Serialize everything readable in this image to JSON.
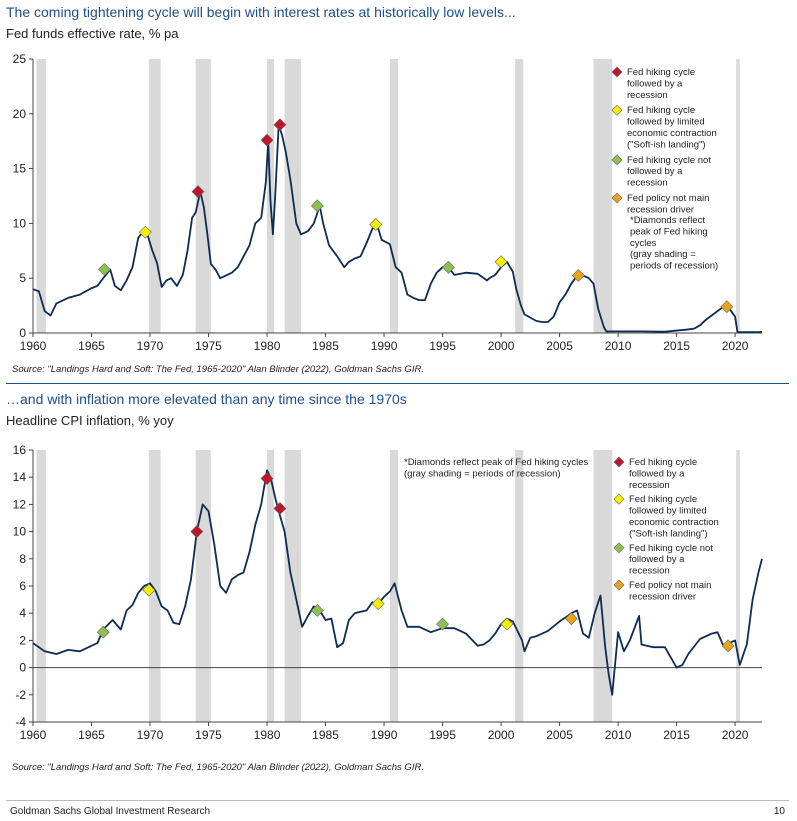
{
  "chart_data": [
    {
      "type": "line",
      "title": "The coming tightening cycle will begin with interest rates at historically low levels...",
      "subtitle": "Fed funds effective rate, % pa",
      "source": "Source: \"Landings Hard and Soft: The Fed, 1965-2020\" Alan Blinder (2022), Goldman Sachs GIR.",
      "xlim": [
        1960,
        2022.3
      ],
      "ylim": [
        0,
        25
      ],
      "xticks": [
        "1960",
        "1965",
        "1970",
        "1975",
        "1980",
        "1985",
        "1990",
        "1995",
        "2000",
        "2005",
        "2010",
        "2015",
        "2020"
      ],
      "yticks": [
        "0",
        "5",
        "10",
        "15",
        "20",
        "25"
      ],
      "recessions": [
        [
          1960.3,
          1961.1
        ],
        [
          1969.9,
          1970.9
        ],
        [
          1973.9,
          1975.2
        ],
        [
          1980.0,
          1980.6
        ],
        [
          1981.5,
          1982.9
        ],
        [
          1990.5,
          1991.2
        ],
        [
          2001.2,
          2001.9
        ],
        [
          2007.9,
          2009.5
        ],
        [
          2020.1,
          2020.4
        ]
      ],
      "series": [
        {
          "name": "Fed funds effective rate",
          "x": [
            1960,
            1960.5,
            1961,
            1961.5,
            1962,
            1963,
            1964,
            1965,
            1965.5,
            1966,
            1966.6,
            1967,
            1967.5,
            1968,
            1968.5,
            1969,
            1969.4,
            1969.8,
            1970.2,
            1970.6,
            1971,
            1971.4,
            1971.8,
            1972.3,
            1972.8,
            1973.2,
            1973.6,
            1973.9,
            1974.3,
            1974.6,
            1974.9,
            1975.2,
            1975.6,
            1976,
            1976.6,
            1977,
            1977.5,
            1978,
            1978.5,
            1979,
            1979.5,
            1979.9,
            1980.1,
            1980.3,
            1980.5,
            1980.7,
            1981,
            1981.3,
            1981.6,
            1982,
            1982.5,
            1982.9,
            1983.5,
            1984,
            1984.5,
            1984.8,
            1985.3,
            1986,
            1986.6,
            1987,
            1987.5,
            1988,
            1988.5,
            1989,
            1989.4,
            1989.8,
            1990.5,
            1991,
            1991.5,
            1992,
            1992.5,
            1993,
            1993.5,
            1994,
            1994.5,
            1995,
            1995.3,
            1995.8,
            1996,
            1997,
            1998,
            1998.8,
            1999,
            1999.5,
            2000,
            2000.5,
            2001,
            2001.3,
            2001.7,
            2002,
            2003,
            2003.5,
            2004,
            2004.5,
            2005,
            2005.5,
            2006,
            2006.5,
            2007,
            2007.5,
            2007.9,
            2008.3,
            2008.8,
            2009,
            2010,
            2012,
            2014,
            2015.8,
            2016.5,
            2017,
            2017.5,
            2018,
            2018.5,
            2019,
            2019.4,
            2019.8,
            2020,
            2020.2,
            2020.5,
            2021,
            2022,
            2022.3
          ],
          "values": [
            4.0,
            3.8,
            2.0,
            1.6,
            2.7,
            3.2,
            3.5,
            4.1,
            4.3,
            5.0,
            5.8,
            4.3,
            3.9,
            4.8,
            6.0,
            8.7,
            9.2,
            8.9,
            7.5,
            6.4,
            4.2,
            4.8,
            5.0,
            4.3,
            5.3,
            7.5,
            10.5,
            11.0,
            12.9,
            11.5,
            9.0,
            6.3,
            5.8,
            5.0,
            5.3,
            5.5,
            6.0,
            7.0,
            8.0,
            10.0,
            10.5,
            13.8,
            17.5,
            12.0,
            9.0,
            12.5,
            19.0,
            18.0,
            16.5,
            14.0,
            10.0,
            9.0,
            9.3,
            10.0,
            11.6,
            10.0,
            8.0,
            7.0,
            6.0,
            6.5,
            6.8,
            7.0,
            8.2,
            9.5,
            9.9,
            8.5,
            8.1,
            6.0,
            5.5,
            3.5,
            3.2,
            3.0,
            3.0,
            4.5,
            5.5,
            6.0,
            6.0,
            5.6,
            5.3,
            5.5,
            5.4,
            4.8,
            5.0,
            5.3,
            6.0,
            6.5,
            5.6,
            4.0,
            2.5,
            1.7,
            1.1,
            1.0,
            1.0,
            1.5,
            2.8,
            3.5,
            4.5,
            5.25,
            5.25,
            5.0,
            4.5,
            2.2,
            0.5,
            0.15,
            0.15,
            0.15,
            0.12,
            0.3,
            0.4,
            0.7,
            1.2,
            1.6,
            2.0,
            2.4,
            2.4,
            1.8,
            1.5,
            0.1,
            0.08,
            0.08,
            0.08,
            0.1
          ]
        }
      ],
      "markers": [
        {
          "x": 1974.1,
          "y": 12.9,
          "category": "red"
        },
        {
          "x": 1980.0,
          "y": 17.6,
          "category": "red"
        },
        {
          "x": 1981.1,
          "y": 19.0,
          "category": "red"
        },
        {
          "x": 1969.6,
          "y": 9.2,
          "category": "yellow"
        },
        {
          "x": 1989.3,
          "y": 9.9,
          "category": "yellow"
        },
        {
          "x": 2000.0,
          "y": 6.5,
          "category": "yellow"
        },
        {
          "x": 1966.1,
          "y": 5.8,
          "category": "green"
        },
        {
          "x": 1984.3,
          "y": 11.6,
          "category": "green"
        },
        {
          "x": 1995.5,
          "y": 6.0,
          "category": "green"
        },
        {
          "x": 2006.6,
          "y": 5.25,
          "category": "orange"
        },
        {
          "x": 2019.3,
          "y": 2.4,
          "category": "orange"
        }
      ],
      "legend": [
        {
          "color": "#c0152b",
          "lines": [
            "Fed hiking cycle",
            "followed by a",
            "recession"
          ]
        },
        {
          "color": "#f4f000",
          "lines": [
            "Fed hiking cycle",
            "followed by limited",
            "economic contraction",
            "(\"Soft-ish landing\")"
          ]
        },
        {
          "color": "#8cc152",
          "lines": [
            "Fed hiking cycle not",
            "followed by a",
            "recession"
          ]
        },
        {
          "color": "#e8a416",
          "lines": [
            "Fed policy not main",
            "recession driver"
          ]
        }
      ],
      "note": [
        "*Diamonds reflect",
        "peak of Fed hiking",
        "cycles",
        "(gray shading =",
        "periods of recession)"
      ]
    },
    {
      "type": "line",
      "title": "…and with inflation more elevated than any time since the 1970s",
      "subtitle": "Headline CPI inflation, % yoy",
      "source": "Source: \"Landings Hard and Soft: The Fed, 1965-2020\" Alan Blinder (2022), Goldman Sachs GIR.",
      "xlim": [
        1960,
        2022.3
      ],
      "ylim": [
        -4,
        16
      ],
      "xticks": [
        "1960",
        "1965",
        "1970",
        "1975",
        "1980",
        "1985",
        "1990",
        "1995",
        "2000",
        "2005",
        "2010",
        "2015",
        "2020"
      ],
      "yticks": [
        "-4",
        "-2",
        "0",
        "2",
        "4",
        "6",
        "8",
        "10",
        "12",
        "14",
        "16"
      ],
      "recessions": [
        [
          1960.3,
          1961.1
        ],
        [
          1969.9,
          1970.9
        ],
        [
          1973.9,
          1975.2
        ],
        [
          1980.0,
          1980.6
        ],
        [
          1981.5,
          1982.9
        ],
        [
          1990.5,
          1991.2
        ],
        [
          2001.2,
          2001.9
        ],
        [
          2007.9,
          2009.5
        ],
        [
          2020.1,
          2020.4
        ]
      ],
      "series": [
        {
          "name": "Headline CPI inflation",
          "x": [
            1960,
            1961,
            1962,
            1963,
            1964,
            1965,
            1965.5,
            1966,
            1966.8,
            1967.5,
            1968,
            1968.5,
            1969,
            1969.5,
            1970,
            1970.5,
            1971,
            1971.5,
            1972,
            1972.5,
            1973,
            1973.5,
            1974,
            1974.5,
            1975,
            1975.5,
            1976,
            1976.5,
            1977,
            1977.5,
            1978,
            1978.5,
            1979,
            1979.5,
            1980,
            1980.3,
            1980.7,
            1981,
            1981.5,
            1982,
            1982.5,
            1983,
            1983.5,
            1984,
            1984.5,
            1985,
            1985.5,
            1986,
            1986.5,
            1987,
            1987.5,
            1988,
            1988.5,
            1989,
            1989.5,
            1990,
            1990.5,
            1990.9,
            1991.5,
            1992,
            1993,
            1994,
            1995,
            1996,
            1997,
            1998,
            1998.5,
            1999,
            1999.5,
            2000,
            2000.5,
            2001,
            2001.8,
            2002,
            2002.5,
            2003,
            2004,
            2005,
            2005.7,
            2006,
            2006.5,
            2007,
            2007.5,
            2008,
            2008.5,
            2008.9,
            2009.2,
            2009.5,
            2010,
            2010.5,
            2011,
            2011.8,
            2012,
            2013,
            2014,
            2015,
            2015.5,
            2016,
            2017,
            2018,
            2018.5,
            2019,
            2019.5,
            2020,
            2020.4,
            2020.8,
            2021,
            2021.5,
            2022,
            2022.3
          ],
          "values": [
            1.8,
            1.2,
            1.0,
            1.3,
            1.2,
            1.6,
            1.8,
            2.8,
            3.5,
            2.8,
            4.2,
            4.6,
            5.5,
            6.0,
            6.2,
            5.6,
            4.5,
            4.2,
            3.3,
            3.2,
            4.5,
            6.5,
            10.0,
            12.0,
            11.5,
            9.0,
            6.0,
            5.5,
            6.5,
            6.8,
            7.0,
            8.5,
            10.5,
            12.0,
            14.5,
            14.0,
            12.5,
            11.5,
            10.0,
            7.0,
            5.0,
            3.0,
            3.8,
            4.5,
            4.2,
            3.5,
            3.6,
            1.5,
            1.8,
            3.5,
            4.0,
            4.1,
            4.2,
            4.8,
            4.7,
            5.2,
            5.6,
            6.2,
            4.2,
            3.0,
            3.0,
            2.6,
            2.9,
            2.9,
            2.5,
            1.6,
            1.7,
            2.0,
            2.5,
            3.2,
            3.6,
            3.4,
            2.0,
            1.2,
            2.2,
            2.3,
            2.7,
            3.4,
            3.8,
            4.0,
            4.2,
            2.5,
            2.2,
            4.0,
            5.3,
            1.5,
            -0.5,
            -2.0,
            2.6,
            1.2,
            2.0,
            3.8,
            1.7,
            1.5,
            1.5,
            0.0,
            0.2,
            1.0,
            2.1,
            2.5,
            2.6,
            1.6,
            1.8,
            2.0,
            0.2,
            1.2,
            1.7,
            5.0,
            7.0,
            8.0
          ]
        }
      ],
      "markers": [
        {
          "x": 1974.0,
          "y": 10.0,
          "category": "red"
        },
        {
          "x": 1980.0,
          "y": 13.9,
          "category": "red"
        },
        {
          "x": 1981.1,
          "y": 11.7,
          "category": "red"
        },
        {
          "x": 1969.9,
          "y": 5.7,
          "category": "yellow"
        },
        {
          "x": 1989.5,
          "y": 4.7,
          "category": "yellow"
        },
        {
          "x": 2000.5,
          "y": 3.2,
          "category": "yellow"
        },
        {
          "x": 1966.0,
          "y": 2.6,
          "category": "green"
        },
        {
          "x": 1984.3,
          "y": 4.2,
          "category": "green"
        },
        {
          "x": 1995.0,
          "y": 3.2,
          "category": "green"
        },
        {
          "x": 2006.0,
          "y": 3.6,
          "category": "orange"
        },
        {
          "x": 2019.4,
          "y": 1.6,
          "category": "orange"
        }
      ],
      "legend": [
        {
          "color": "#c0152b",
          "lines": [
            "Fed hiking cycle",
            "followed by a",
            "recession"
          ]
        },
        {
          "color": "#f4f000",
          "lines": [
            "Fed hiking cycle",
            "followed by limited",
            "economic contraction",
            "(\"Soft-ish landing\")"
          ]
        },
        {
          "color": "#8cc152",
          "lines": [
            "Fed hiking cycle not",
            "followed by a",
            "recession"
          ]
        },
        {
          "color": "#e8a416",
          "lines": [
            "Fed policy not main",
            "recession driver"
          ]
        }
      ],
      "note": [
        "*Diamonds reflect peak of Fed hiking cycles",
        "(gray shading = periods of recession)"
      ]
    }
  ],
  "colors": {
    "line": "#0d2c54",
    "recession": "#d9d9d9",
    "title": "#1f4e8c",
    "red": "#c0152b",
    "yellow": "#f4f000",
    "green": "#8cc152",
    "orange": "#e8a416"
  },
  "footer": {
    "left": "Goldman Sachs Global Investment Research",
    "right": "10"
  }
}
